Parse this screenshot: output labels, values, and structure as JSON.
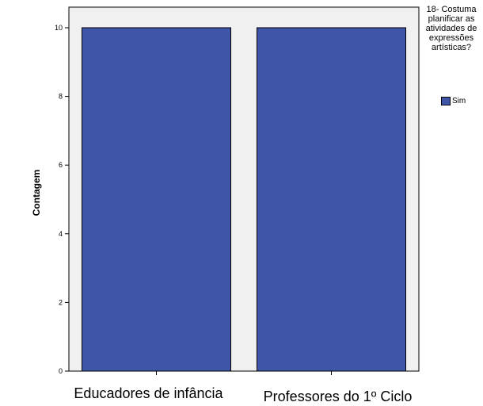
{
  "chart_data": {
    "type": "bar",
    "categories": [
      "Educadores de infância",
      "Professores do 1º Ciclo"
    ],
    "series": [
      {
        "name": "Sim",
        "values": [
          10,
          10
        ]
      }
    ],
    "ylabel": "Contagem",
    "xlabel": "",
    "ylim": [
      0,
      10.6
    ],
    "yticks": [
      0,
      2,
      4,
      6,
      8,
      10
    ],
    "legend": {
      "title": "18- Costuma planificar as atividades de expressões artísticas?",
      "placement": "right"
    },
    "grid": false,
    "bar_color": "#3e55a8",
    "plot_background": "#f0f0f0"
  }
}
